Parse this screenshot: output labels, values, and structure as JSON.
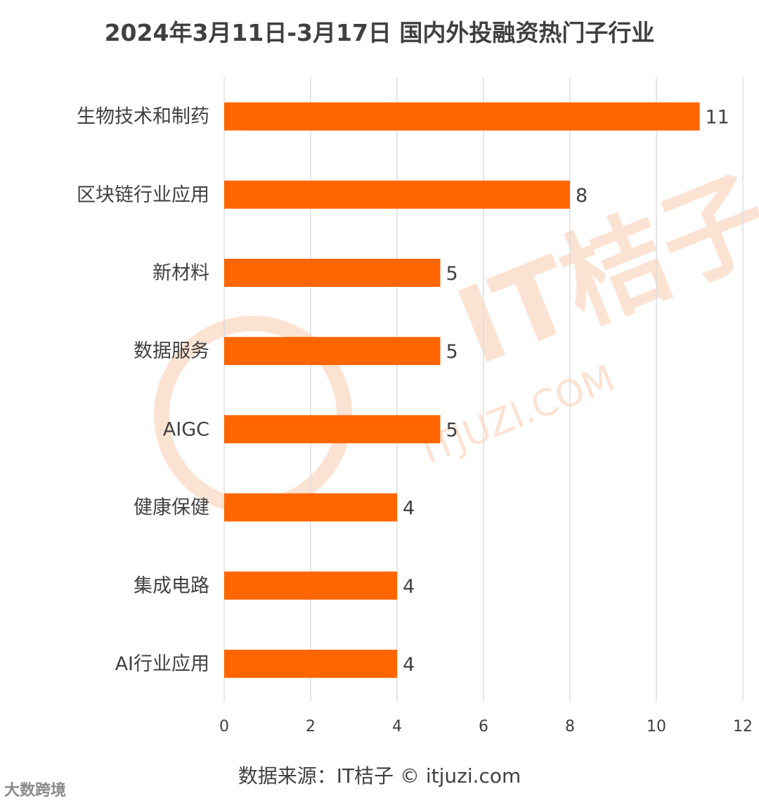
{
  "title": "2024年3月11日-3月17日 国内外投融资热门子行业",
  "source": "数据来源：IT桔子 © itjuzi.com",
  "watermark": {
    "main": "IT桔子",
    "url": "ITJUZI.COM",
    "corner": "大数跨境"
  },
  "colors": {
    "bar": "#ff6600",
    "grid": "#d9d9d9",
    "text": "#404040"
  },
  "chart_data": {
    "type": "bar",
    "orientation": "horizontal",
    "categories": [
      "生物技术和制药",
      "区块链行业应用",
      "新材料",
      "数据服务",
      "AIGC",
      "健康保健",
      "集成电路",
      "AI行业应用"
    ],
    "values": [
      11,
      8,
      5,
      5,
      5,
      4,
      4,
      4
    ],
    "xlim": [
      0,
      12
    ],
    "xticks": [
      0,
      2,
      4,
      6,
      8,
      10,
      12
    ],
    "grid": true,
    "data_labels": true
  }
}
